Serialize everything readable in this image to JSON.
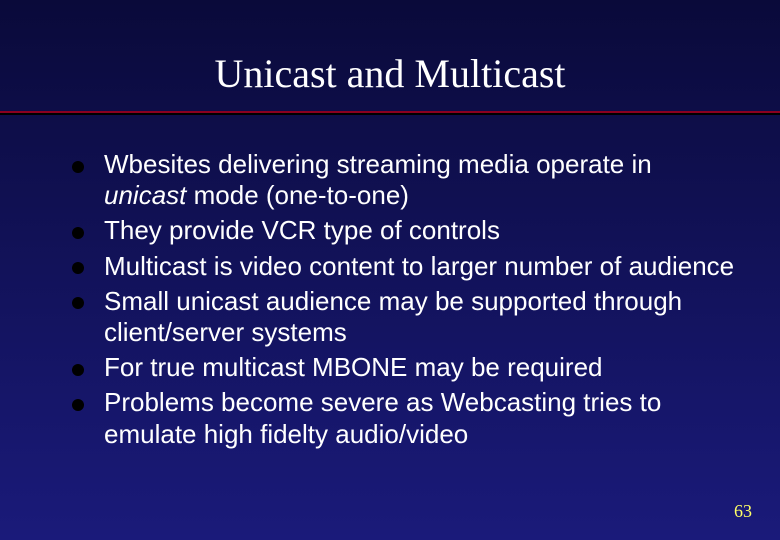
{
  "slide": {
    "title": "Unicast and Multicast",
    "title_fontsize": 40,
    "title_color": "#ffffff",
    "divider_top_color": "#8b0020",
    "divider_bottom_color": "#000000",
    "background_gradient_top": "#0a0a3a",
    "background_gradient_bottom": "#1a1a7a",
    "bullet_color": "#000000",
    "body_text_color": "#ffffff",
    "body_fontsize": 26,
    "line_height": 1.2,
    "bullets": [
      {
        "pre": "Wbesites delivering streaming media operate in ",
        "italic": "unicast",
        "post": " mode (one-to-one)"
      },
      {
        "pre": "They provide VCR type of controls",
        "italic": "",
        "post": ""
      },
      {
        "pre": "Multicast is video content to larger number of audience",
        "italic": "",
        "post": ""
      },
      {
        "pre": "Small unicast  audience may be supported through client/server systems",
        "italic": "",
        "post": ""
      },
      {
        "pre": "For true multicast MBONE may be required",
        "italic": "",
        "post": ""
      },
      {
        "pre": "Problems become severe as Webcasting tries to emulate high fidelty audio/video",
        "italic": "",
        "post": ""
      }
    ],
    "page_number": "63",
    "page_number_color": "#ffff66",
    "page_number_fontsize": 18
  }
}
